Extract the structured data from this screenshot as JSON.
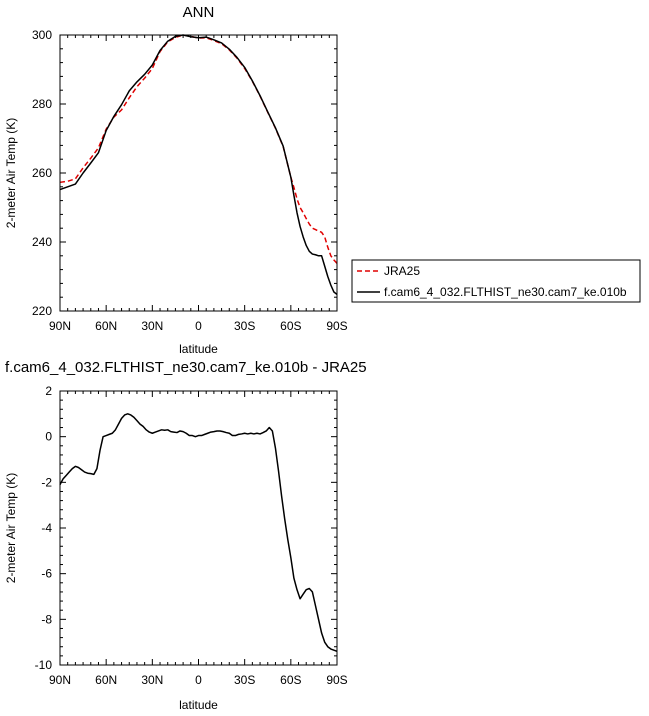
{
  "chart_data": [
    {
      "type": "line",
      "title": "ANN",
      "xlabel": "latitude",
      "ylabel": "2-meter Air Temp (K)",
      "xlim": [
        90,
        -90
      ],
      "ylim": [
        220,
        300
      ],
      "xticks": [
        90,
        60,
        30,
        0,
        -30,
        -60,
        -90
      ],
      "xtick_labels": [
        "90N",
        "60N",
        "30N",
        "0",
        "30S",
        "60S",
        "90S"
      ],
      "yticks": [
        220,
        240,
        260,
        280,
        300
      ],
      "ytick_labels": [
        "220",
        "240",
        "260",
        "280",
        "300"
      ],
      "legend": {
        "placement": "right of plot, bottom"
      },
      "grid": false,
      "series": [
        {
          "name": "JRA25",
          "color": "#e00000",
          "style": "dashed",
          "x": [
            90,
            85,
            80,
            75,
            70,
            65,
            60,
            55,
            50,
            45,
            40,
            35,
            30,
            25,
            20,
            15,
            10,
            5,
            0,
            -5,
            -10,
            -15,
            -20,
            -25,
            -30,
            -35,
            -40,
            -45,
            -50,
            -55,
            -60,
            -62,
            -64,
            -66,
            -68,
            -70,
            -72,
            -74,
            -76,
            -78,
            -80,
            -82,
            -84,
            -86,
            -88,
            -90
          ],
          "y": [
            257.3,
            257.6,
            258.3,
            261.5,
            264.3,
            267.3,
            272.7,
            276.2,
            278.3,
            281.8,
            285.0,
            287.5,
            290.3,
            295.2,
            298.0,
            299.3,
            300.0,
            299.6,
            299.1,
            299.2,
            298.4,
            297.5,
            295.7,
            293.3,
            290.3,
            286.6,
            282.3,
            277.6,
            273.0,
            267.7,
            258.8,
            255.8,
            252.5,
            250.0,
            248.5,
            246.8,
            245.2,
            244.0,
            243.6,
            243.2,
            242.8,
            241.5,
            238.5,
            236.0,
            234.8,
            233.8
          ]
        },
        {
          "name": "f.cam6_4_032.FLTHIST_ne30.cam7_ke.010b",
          "color": "#000000",
          "style": "solid",
          "x": [
            90,
            85,
            80,
            75,
            70,
            65,
            60,
            55,
            50,
            45,
            40,
            35,
            30,
            25,
            20,
            15,
            10,
            5,
            0,
            -5,
            -10,
            -15,
            -20,
            -25,
            -30,
            -35,
            -40,
            -45,
            -50,
            -55,
            -60,
            -62,
            -64,
            -66,
            -68,
            -70,
            -72,
            -74,
            -76,
            -78,
            -80,
            -82,
            -84,
            -86,
            -88,
            -90
          ],
          "y": [
            255.2,
            256.0,
            256.8,
            260.0,
            262.9,
            265.9,
            272.3,
            276.4,
            279.8,
            283.8,
            286.4,
            288.6,
            291.3,
            295.5,
            298.2,
            299.6,
            300.0,
            299.5,
            299.2,
            299.4,
            298.6,
            297.7,
            295.9,
            293.5,
            290.6,
            286.7,
            282.4,
            277.7,
            273.1,
            267.8,
            258.8,
            253.5,
            248.5,
            244.5,
            241.5,
            239.0,
            237.3,
            236.5,
            236.3,
            236.0,
            236.0,
            233.0,
            230.0,
            227.5,
            225.5,
            224.8
          ]
        }
      ]
    },
    {
      "type": "line",
      "title": "f.cam6_4_032.FLTHIST_ne30.cam7_ke.010b - JRA25",
      "xlabel": "latitude",
      "ylabel": "2-meter Air Temp (K)",
      "xlim": [
        90,
        -90
      ],
      "ylim": [
        -10,
        2
      ],
      "xticks": [
        90,
        60,
        30,
        0,
        -30,
        -60,
        -90
      ],
      "xtick_labels": [
        "90N",
        "60N",
        "30N",
        "0",
        "30S",
        "60S",
        "90S"
      ],
      "yticks": [
        -10,
        -8,
        -6,
        -4,
        -2,
        0,
        2
      ],
      "ytick_labels": [
        "-10",
        "-8",
        "-6",
        "-4",
        "-2",
        "0",
        "2"
      ],
      "grid": false,
      "series": [
        {
          "color": "#000000",
          "style": "solid",
          "x": [
            90,
            88,
            86,
            84,
            82,
            80,
            78,
            76,
            74,
            72,
            70,
            68,
            66,
            64,
            62,
            60,
            58,
            56,
            54,
            52,
            50,
            48,
            46,
            44,
            42,
            40,
            38,
            36,
            34,
            32,
            30,
            28,
            26,
            24,
            22,
            20,
            18,
            16,
            14,
            12,
            10,
            8,
            6,
            4,
            2,
            0,
            -2,
            -4,
            -6,
            -8,
            -10,
            -12,
            -14,
            -16,
            -18,
            -20,
            -22,
            -24,
            -26,
            -28,
            -30,
            -32,
            -34,
            -36,
            -38,
            -40,
            -42,
            -44,
            -46,
            -48,
            -50,
            -52,
            -54,
            -56,
            -58,
            -60,
            -62,
            -64,
            -66,
            -68,
            -70,
            -72,
            -74,
            -76,
            -78,
            -80,
            -82,
            -84,
            -86,
            -88,
            -90
          ],
          "y": [
            -2.1,
            -1.85,
            -1.7,
            -1.55,
            -1.4,
            -1.3,
            -1.35,
            -1.45,
            -1.55,
            -1.6,
            -1.62,
            -1.65,
            -1.4,
            -0.6,
            0.0,
            0.05,
            0.1,
            0.15,
            0.3,
            0.55,
            0.8,
            0.95,
            1.0,
            0.95,
            0.85,
            0.7,
            0.55,
            0.45,
            0.3,
            0.2,
            0.15,
            0.2,
            0.25,
            0.3,
            0.28,
            0.3,
            0.22,
            0.2,
            0.18,
            0.25,
            0.22,
            0.15,
            0.05,
            0.05,
            0.0,
            0.05,
            0.05,
            0.1,
            0.15,
            0.2,
            0.22,
            0.25,
            0.25,
            0.22,
            0.18,
            0.15,
            0.05,
            0.05,
            0.1,
            0.12,
            0.15,
            0.12,
            0.15,
            0.12,
            0.15,
            0.12,
            0.18,
            0.25,
            0.4,
            0.25,
            -0.5,
            -1.5,
            -2.6,
            -3.6,
            -4.5,
            -5.3,
            -6.2,
            -6.7,
            -7.1,
            -6.9,
            -6.7,
            -6.65,
            -6.8,
            -7.4,
            -8.0,
            -8.6,
            -9.0,
            -9.2,
            -9.3,
            -9.35,
            -9.4
          ]
        }
      ]
    }
  ]
}
